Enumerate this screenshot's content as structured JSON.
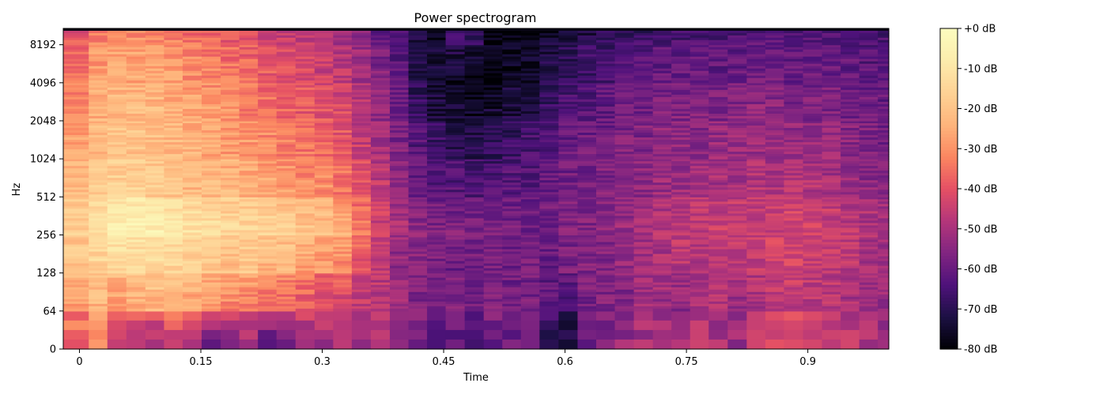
{
  "chart_data": {
    "type": "heatmap",
    "title": "Power spectrogram",
    "xlabel": "Time",
    "ylabel": "Hz",
    "xlim": [
      -0.02,
      1.0
    ],
    "x_ticks": [
      0,
      0.15,
      0.3,
      0.45,
      0.6,
      0.75,
      0.9
    ],
    "x_tick_labels": [
      "0",
      "0.15",
      "0.3",
      "0.45",
      "0.6",
      "0.75",
      "0.9"
    ],
    "y_scale": "symlog",
    "y_linthresh_hz": 64,
    "ylim_hz": [
      0,
      11025
    ],
    "y_ticks_hz": [
      0,
      64,
      128,
      256,
      512,
      1024,
      2048,
      4096,
      8192
    ],
    "y_tick_labels": [
      "0",
      "64",
      "128",
      "256",
      "512",
      "1024",
      "2048",
      "4096",
      "8192"
    ],
    "colormap": "magma",
    "colorbar": {
      "range_db": [
        -80,
        0
      ],
      "ticks_db": [
        0,
        -10,
        -20,
        -30,
        -40,
        -50,
        -60,
        -70,
        -80
      ],
      "tick_labels": [
        "+0 dB",
        "-10 dB",
        "-20 dB",
        "-30 dB",
        "-40 dB",
        "-50 dB",
        "-60 dB",
        "-70 dB",
        "-80 dB"
      ]
    },
    "time_frames": [
      0.0,
      0.023,
      0.046,
      0.07,
      0.093,
      0.116,
      0.139,
      0.163,
      0.186,
      0.209,
      0.232,
      0.255,
      0.279,
      0.302,
      0.325,
      0.348,
      0.372,
      0.395,
      0.418,
      0.441,
      0.464,
      0.488,
      0.511,
      0.534,
      0.557,
      0.58,
      0.604,
      0.627,
      0.65,
      0.673,
      0.697,
      0.72,
      0.743,
      0.766,
      0.789,
      0.813,
      0.836,
      0.859,
      0.882,
      0.906,
      0.929,
      0.952,
      0.975,
      0.998
    ],
    "freq_bands_hz": [
      0,
      64,
      128,
      256,
      512,
      1024,
      2048,
      4096,
      8192
    ],
    "power_db": [
      [
        -38,
        -32,
        -48,
        -50,
        -52,
        -46,
        -52,
        -62,
        -56,
        -54,
        -62,
        -58,
        -50,
        -52,
        -46,
        -52,
        -50,
        -56,
        -58,
        -64,
        -62,
        -62,
        -60,
        -60,
        -62,
        -68,
        -72,
        -60,
        -58,
        -52,
        -50,
        -52,
        -48,
        -46,
        -50,
        -52,
        -48,
        -42,
        -40,
        -44,
        -46,
        -48,
        -50,
        -52
      ],
      [
        -28,
        -24,
        -30,
        -26,
        -24,
        -26,
        -28,
        -30,
        -32,
        -34,
        -36,
        -38,
        -40,
        -42,
        -44,
        -46,
        -48,
        -52,
        -56,
        -58,
        -56,
        -58,
        -56,
        -58,
        -58,
        -62,
        -64,
        -58,
        -56,
        -56,
        -52,
        -52,
        -54,
        -50,
        -50,
        -52,
        -50,
        -46,
        -46,
        -48,
        -48,
        -50,
        -50,
        -52
      ],
      [
        -20,
        -16,
        -14,
        -16,
        -14,
        -16,
        -18,
        -20,
        -22,
        -20,
        -24,
        -24,
        -28,
        -30,
        -32,
        -40,
        -46,
        -54,
        -56,
        -58,
        -60,
        -58,
        -58,
        -60,
        -58,
        -60,
        -58,
        -56,
        -56,
        -54,
        -52,
        -50,
        -48,
        -48,
        -46,
        -48,
        -46,
        -44,
        -44,
        -44,
        -46,
        -48,
        -50,
        -52
      ],
      [
        -18,
        -12,
        -6,
        -4,
        -6,
        -8,
        -10,
        -12,
        -14,
        -14,
        -14,
        -16,
        -18,
        -20,
        -24,
        -34,
        -44,
        -50,
        -54,
        -56,
        -56,
        -56,
        -58,
        -58,
        -58,
        -58,
        -56,
        -56,
        -54,
        -52,
        -50,
        -48,
        -46,
        -46,
        -44,
        -44,
        -44,
        -44,
        -42,
        -44,
        -44,
        -46,
        -48,
        -50
      ],
      [
        -22,
        -18,
        -16,
        -16,
        -18,
        -20,
        -22,
        -22,
        -22,
        -24,
        -26,
        -28,
        -30,
        -30,
        -34,
        -38,
        -46,
        -52,
        -60,
        -62,
        -62,
        -64,
        -64,
        -62,
        -62,
        -60,
        -58,
        -58,
        -56,
        -56,
        -54,
        -52,
        -52,
        -50,
        -50,
        -50,
        -48,
        -48,
        -48,
        -48,
        -50,
        -52,
        -54,
        -56
      ],
      [
        -26,
        -22,
        -20,
        -20,
        -20,
        -22,
        -24,
        -26,
        -28,
        -28,
        -30,
        -32,
        -34,
        -36,
        -38,
        -44,
        -50,
        -56,
        -62,
        -66,
        -68,
        -70,
        -68,
        -66,
        -64,
        -62,
        -60,
        -58,
        -58,
        -56,
        -56,
        -54,
        -54,
        -54,
        -52,
        -52,
        -52,
        -52,
        -52,
        -52,
        -52,
        -54,
        -56,
        -58
      ],
      [
        -30,
        -24,
        -22,
        -22,
        -22,
        -24,
        -26,
        -28,
        -30,
        -32,
        -34,
        -36,
        -38,
        -40,
        -42,
        -48,
        -54,
        -60,
        -68,
        -72,
        -74,
        -76,
        -74,
        -72,
        -70,
        -66,
        -64,
        -62,
        -60,
        -58,
        -58,
        -56,
        -56,
        -56,
        -56,
        -54,
        -54,
        -54,
        -56,
        -56,
        -56,
        -58,
        -58,
        -60
      ],
      [
        -34,
        -28,
        -26,
        -26,
        -26,
        -28,
        -30,
        -32,
        -34,
        -36,
        -38,
        -40,
        -42,
        -44,
        -46,
        -50,
        -56,
        -62,
        -70,
        -74,
        -76,
        -78,
        -78,
        -76,
        -74,
        -70,
        -68,
        -66,
        -64,
        -62,
        -62,
        -60,
        -60,
        -60,
        -60,
        -60,
        -58,
        -58,
        -60,
        -60,
        -60,
        -60,
        -62,
        -62
      ],
      [
        -38,
        -32,
        -30,
        -30,
        -30,
        -32,
        -34,
        -36,
        -38,
        -40,
        -42,
        -44,
        -46,
        -48,
        -50,
        -54,
        -58,
        -64,
        -72,
        -74,
        -66,
        -68,
        -78,
        -78,
        -76,
        -74,
        -72,
        -70,
        -68,
        -66,
        -66,
        -64,
        -64,
        -64,
        -64,
        -62,
        -62,
        -62,
        -62,
        -62,
        -62,
        -64,
        -64,
        -64
      ]
    ]
  }
}
